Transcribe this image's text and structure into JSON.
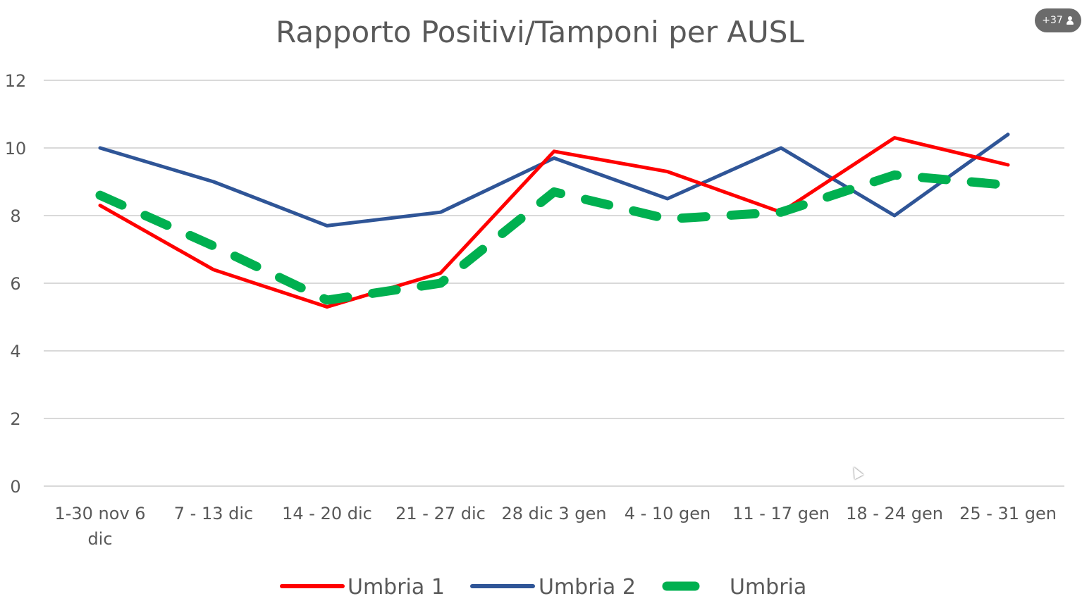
{
  "badge": {
    "count": "+37",
    "icon": "person-icon"
  },
  "chart_data": {
    "type": "line",
    "title": "Rapporto Positivi/Tamponi per AUSL",
    "categories": [
      [
        "1-30 nov 6",
        "dic"
      ],
      [
        "7 - 13 dic"
      ],
      [
        "14 - 20 dic"
      ],
      [
        "21 - 27 dic"
      ],
      [
        "28 dic 3 gen"
      ],
      [
        "4 - 10 gen"
      ],
      [
        "11 - 17 gen"
      ],
      [
        "18 - 24 gen"
      ],
      [
        "25 - 31 gen"
      ]
    ],
    "ylim": [
      0,
      12
    ],
    "yticks": [
      0,
      2,
      4,
      6,
      8,
      10,
      12
    ],
    "grid": true,
    "legend_position": "bottom",
    "series": [
      {
        "name": "Umbria 1",
        "color": "#ff0000",
        "style": "solid",
        "values": [
          8.3,
          6.4,
          5.3,
          6.3,
          9.9,
          9.3,
          8.1,
          10.3,
          9.5
        ]
      },
      {
        "name": "Umbria 2",
        "color": "#2f5597",
        "style": "solid",
        "values": [
          10.0,
          9.0,
          7.7,
          8.1,
          9.7,
          8.5,
          10.0,
          8.0,
          10.4
        ]
      },
      {
        "name": "Umbria",
        "color": "#00b050",
        "style": "dashed",
        "values": [
          8.6,
          7.1,
          5.5,
          6.0,
          8.7,
          7.9,
          8.1,
          9.2,
          8.9
        ]
      }
    ]
  }
}
